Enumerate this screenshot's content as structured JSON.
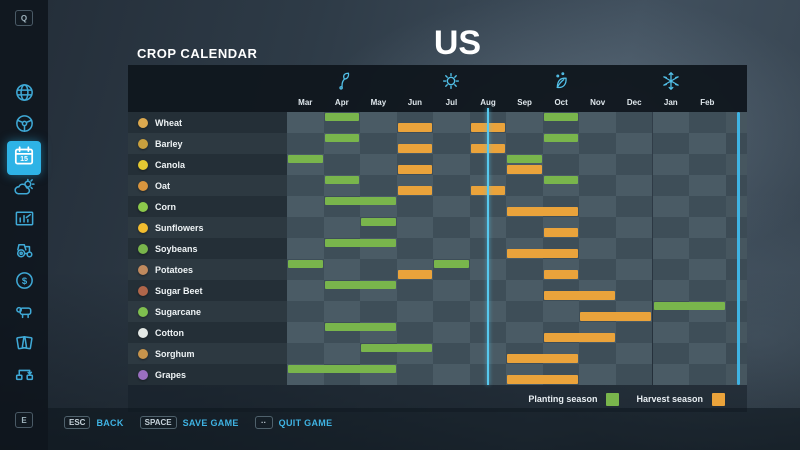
{
  "header": {
    "title": "CROP CALENDAR",
    "region": "US"
  },
  "sidebar": {
    "page_hint_prev": "Q",
    "page_hint_next": "E",
    "selected_item": "calendar",
    "calendar_day": "15",
    "items": [
      {
        "icon": "globe-icon",
        "name": "map"
      },
      {
        "icon": "steering-wheel-icon",
        "name": "vehicles"
      },
      {
        "icon": "calendar-icon",
        "name": "calendar",
        "selected": true
      },
      {
        "icon": "weather-icon",
        "name": "weather"
      },
      {
        "icon": "statistics-icon",
        "name": "statistics"
      },
      {
        "icon": "tractor-icon",
        "name": "garage"
      },
      {
        "icon": "dollar-icon",
        "name": "finances"
      },
      {
        "icon": "cow-icon",
        "name": "animals"
      },
      {
        "icon": "cards-icon",
        "name": "contracts"
      },
      {
        "icon": "production-chain-icon",
        "name": "production"
      }
    ]
  },
  "chart_data": {
    "type": "gantt",
    "title": "CROP CALENDAR",
    "region": "US",
    "categories": [
      "Mar",
      "Apr",
      "May",
      "Jun",
      "Jul",
      "Aug",
      "Sep",
      "Oct",
      "Nov",
      "Dec",
      "Jan",
      "Feb"
    ],
    "seasons": [
      {
        "name": "spring",
        "icon": "sprout-icon",
        "month": "Apr"
      },
      {
        "name": "summer",
        "icon": "sun-icon",
        "month": "Jul"
      },
      {
        "name": "autumn",
        "icon": "leaf-icon",
        "month": "Oct"
      },
      {
        "name": "winter",
        "icon": "snowflake-icon",
        "month": "Jan"
      }
    ],
    "current_day": {
      "month": "Aug",
      "day_fraction": 0.5
    },
    "legend": [
      {
        "label": "Planting season",
        "color": "#79b54c"
      },
      {
        "label": "Harvest season",
        "color": "#eaa33b"
      }
    ],
    "series": [
      {
        "crop": "Wheat",
        "icon_color": "#dca94f",
        "planting": [
          [
            "Apr",
            "Apr"
          ],
          [
            "Oct",
            "Oct"
          ]
        ],
        "harvest": [
          [
            "Jun",
            "Jun"
          ],
          [
            "Aug",
            "Aug"
          ]
        ]
      },
      {
        "crop": "Barley",
        "icon_color": "#c9a03e",
        "planting": [
          [
            "Apr",
            "Apr"
          ],
          [
            "Oct",
            "Oct"
          ]
        ],
        "harvest": [
          [
            "Jun",
            "Jun"
          ],
          [
            "Aug",
            "Aug"
          ]
        ]
      },
      {
        "crop": "Canola",
        "icon_color": "#e3c832",
        "planting": [
          [
            "Mar",
            "Mar"
          ],
          [
            "Sep",
            "Sep"
          ]
        ],
        "harvest": [
          [
            "Jun",
            "Jun"
          ],
          [
            "Sep",
            "Sep"
          ]
        ]
      },
      {
        "crop": "Oat",
        "icon_color": "#d8953e",
        "planting": [
          [
            "Apr",
            "Apr"
          ],
          [
            "Oct",
            "Oct"
          ]
        ],
        "harvest": [
          [
            "Jun",
            "Jun"
          ],
          [
            "Aug",
            "Aug"
          ]
        ]
      },
      {
        "crop": "Corn",
        "icon_color": "#8cc94b",
        "planting": [
          [
            "Apr",
            "May"
          ]
        ],
        "harvest": [
          [
            "Sep",
            "Oct"
          ]
        ]
      },
      {
        "crop": "Sunflowers",
        "icon_color": "#f2bd2f",
        "planting": [
          [
            "May",
            "May"
          ]
        ],
        "harvest": [
          [
            "Oct",
            "Oct"
          ]
        ]
      },
      {
        "crop": "Soybeans",
        "icon_color": "#79b54c",
        "planting": [
          [
            "Apr",
            "May"
          ]
        ],
        "harvest": [
          [
            "Sep",
            "Oct"
          ]
        ]
      },
      {
        "crop": "Potatoes",
        "icon_color": "#c08a5e",
        "planting": [
          [
            "Mar",
            "Mar"
          ],
          [
            "Jul",
            "Jul"
          ]
        ],
        "harvest": [
          [
            "Jun",
            "Jun"
          ],
          [
            "Oct",
            "Oct"
          ]
        ]
      },
      {
        "crop": "Sugar Beet",
        "icon_color": "#b0664a",
        "planting": [
          [
            "Apr",
            "May"
          ]
        ],
        "harvest": [
          [
            "Oct",
            "Nov"
          ]
        ]
      },
      {
        "crop": "Sugarcane",
        "icon_color": "#7fbf4f",
        "planting": [
          [
            "Jan",
            "Feb"
          ]
        ],
        "harvest": [
          [
            "Nov",
            "Dec"
          ]
        ]
      },
      {
        "crop": "Cotton",
        "icon_color": "#e4e9e6",
        "planting": [
          [
            "Apr",
            "May"
          ]
        ],
        "harvest": [
          [
            "Oct",
            "Nov"
          ]
        ]
      },
      {
        "crop": "Sorghum",
        "icon_color": "#c7944c",
        "planting": [
          [
            "May",
            "Jun"
          ]
        ],
        "harvest": [
          [
            "Sep",
            "Oct"
          ]
        ]
      },
      {
        "crop": "Grapes",
        "icon_color": "#9a6fc0",
        "planting": [
          [
            "Mar",
            "May"
          ]
        ],
        "harvest": [
          [
            "Sep",
            "Oct"
          ]
        ]
      }
    ]
  },
  "hotkeys": [
    {
      "key": "ESC",
      "label": "BACK"
    },
    {
      "key": "SPACE",
      "label": "SAVE GAME"
    },
    {
      "key": "··",
      "label": "QUIT GAME"
    }
  ]
}
